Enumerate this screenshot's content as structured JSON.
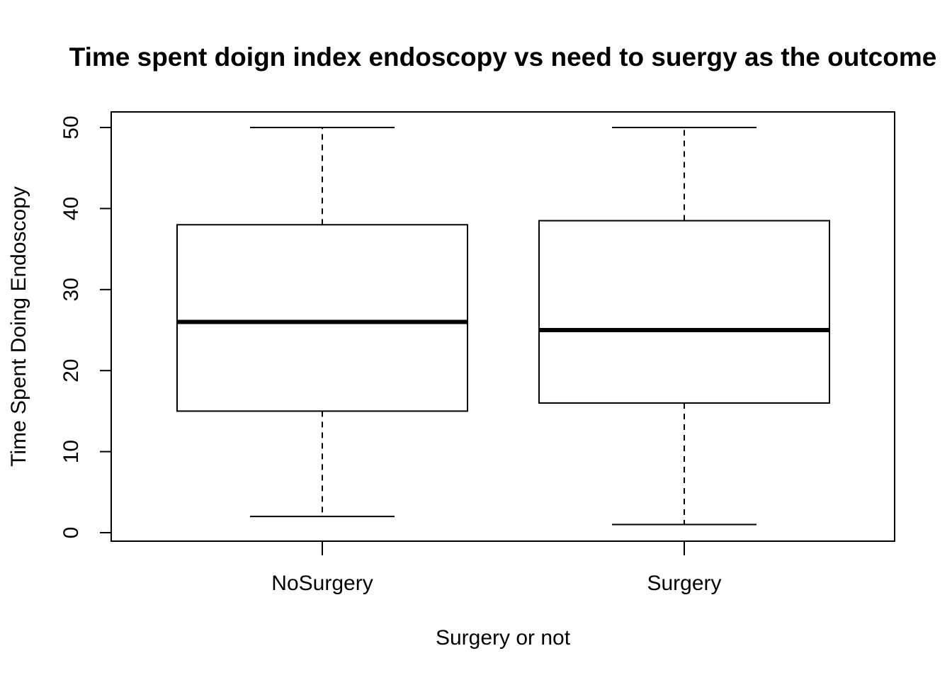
{
  "chart_data": {
    "type": "box",
    "title": "Time spent doign index endoscopy vs need to suergy as the outcome",
    "xlabel": "Surgery or not",
    "ylabel": "Time Spent Doing Endoscopy",
    "ylim": [
      0,
      50
    ],
    "yticks": [
      0,
      10,
      20,
      30,
      40,
      50
    ],
    "categories": [
      "NoSurgery",
      "Surgery"
    ],
    "boxes": [
      {
        "category": "NoSurgery",
        "min": 2,
        "q1": 15,
        "median": 26,
        "q3": 38,
        "max": 50
      },
      {
        "category": "Surgery",
        "min": 1,
        "q1": 16,
        "median": 25,
        "q3": 38.5,
        "max": 50
      }
    ],
    "grid": false,
    "legend": "none"
  }
}
